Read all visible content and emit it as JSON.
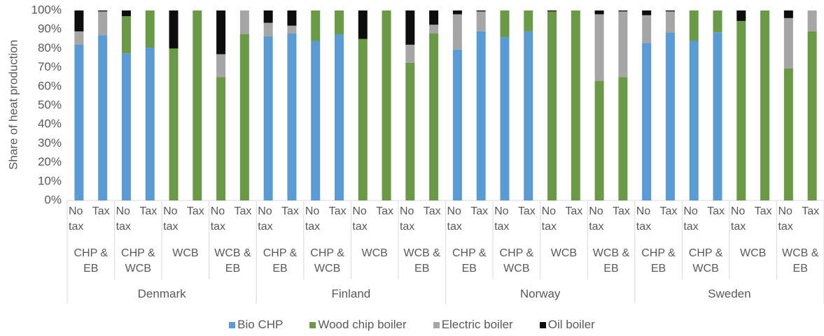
{
  "chart_data": {
    "type": "bar",
    "stacked": true,
    "y_label": "Share of heat production",
    "ylim": [
      0,
      100
    ],
    "yticks": [
      {
        "value": 0,
        "label": "0%"
      },
      {
        "value": 10,
        "label": "10%"
      },
      {
        "value": 20,
        "label": "20%"
      },
      {
        "value": 30,
        "label": "30%"
      },
      {
        "value": 40,
        "label": "40%"
      },
      {
        "value": 50,
        "label": "50%"
      },
      {
        "value": 60,
        "label": "60%"
      },
      {
        "value": 70,
        "label": "70%"
      },
      {
        "value": 80,
        "label": "80%"
      },
      {
        "value": 90,
        "label": "90%"
      },
      {
        "value": 100,
        "label": "100%"
      }
    ],
    "categories": [
      "No tax",
      "Tax",
      "No tax",
      "Tax",
      "No tax",
      "Tax",
      "No tax",
      "Tax",
      "No tax",
      "Tax",
      "No tax",
      "Tax",
      "No tax",
      "Tax",
      "No tax",
      "Tax",
      "No tax",
      "Tax",
      "No tax",
      "Tax",
      "No tax",
      "Tax",
      "No tax",
      "Tax",
      "No tax",
      "Tax",
      "No tax",
      "Tax",
      "No tax",
      "Tax",
      "No tax",
      "Tax"
    ],
    "groups": [
      "CHP & EB",
      "CHP & WCB",
      "WCB",
      "WCB & EB",
      "CHP & EB",
      "CHP & WCB",
      "WCB",
      "WCB & EB",
      "CHP & EB",
      "CHP & WCB",
      "WCB",
      "WCB & EB",
      "CHP & EB",
      "CHP & WCB",
      "WCB",
      "WCB & EB"
    ],
    "countries": [
      "Denmark",
      "Finland",
      "Norway",
      "Sweden"
    ],
    "series": [
      {
        "name": "Bio CHP",
        "color": "#5b9bd5",
        "values": [
          82,
          87,
          77.5,
          80.5,
          0,
          0,
          0,
          0,
          86.5,
          88,
          84,
          87.5,
          0,
          0,
          0,
          0,
          79.5,
          89,
          86,
          89,
          0,
          0,
          0,
          0,
          83,
          88.5,
          84,
          88.5,
          0,
          0,
          0,
          0
        ]
      },
      {
        "name": "Wood chip boiler",
        "color": "#6a9a45",
        "values": [
          0,
          0,
          19.5,
          19.5,
          80,
          100,
          65,
          87.5,
          0,
          0,
          16,
          12.5,
          85,
          100,
          72.5,
          88,
          0,
          0,
          14,
          11,
          99.5,
          100,
          63,
          65,
          0,
          0,
          16,
          11.5,
          94.5,
          100,
          69.5,
          89
        ]
      },
      {
        "name": "Electric boiler",
        "color": "#a6a6a6",
        "values": [
          7,
          12.5,
          0,
          0,
          0,
          0,
          12,
          12.5,
          7,
          4,
          0,
          0,
          0,
          0,
          9.5,
          4.5,
          18.5,
          10.5,
          0,
          0,
          0,
          0,
          35,
          34.5,
          14.5,
          11,
          0,
          0,
          0,
          0,
          26.5,
          11
        ]
      },
      {
        "name": "Oil boiler",
        "color": "#0d0d0d",
        "values": [
          11,
          0.5,
          3,
          0,
          20,
          0,
          23,
          0,
          6.5,
          8,
          0,
          0,
          15,
          0,
          18,
          7.5,
          2,
          0.5,
          0,
          0,
          0.5,
          0,
          2,
          0.5,
          2.5,
          0.5,
          0,
          0,
          5.5,
          0,
          4,
          0
        ]
      }
    ]
  }
}
